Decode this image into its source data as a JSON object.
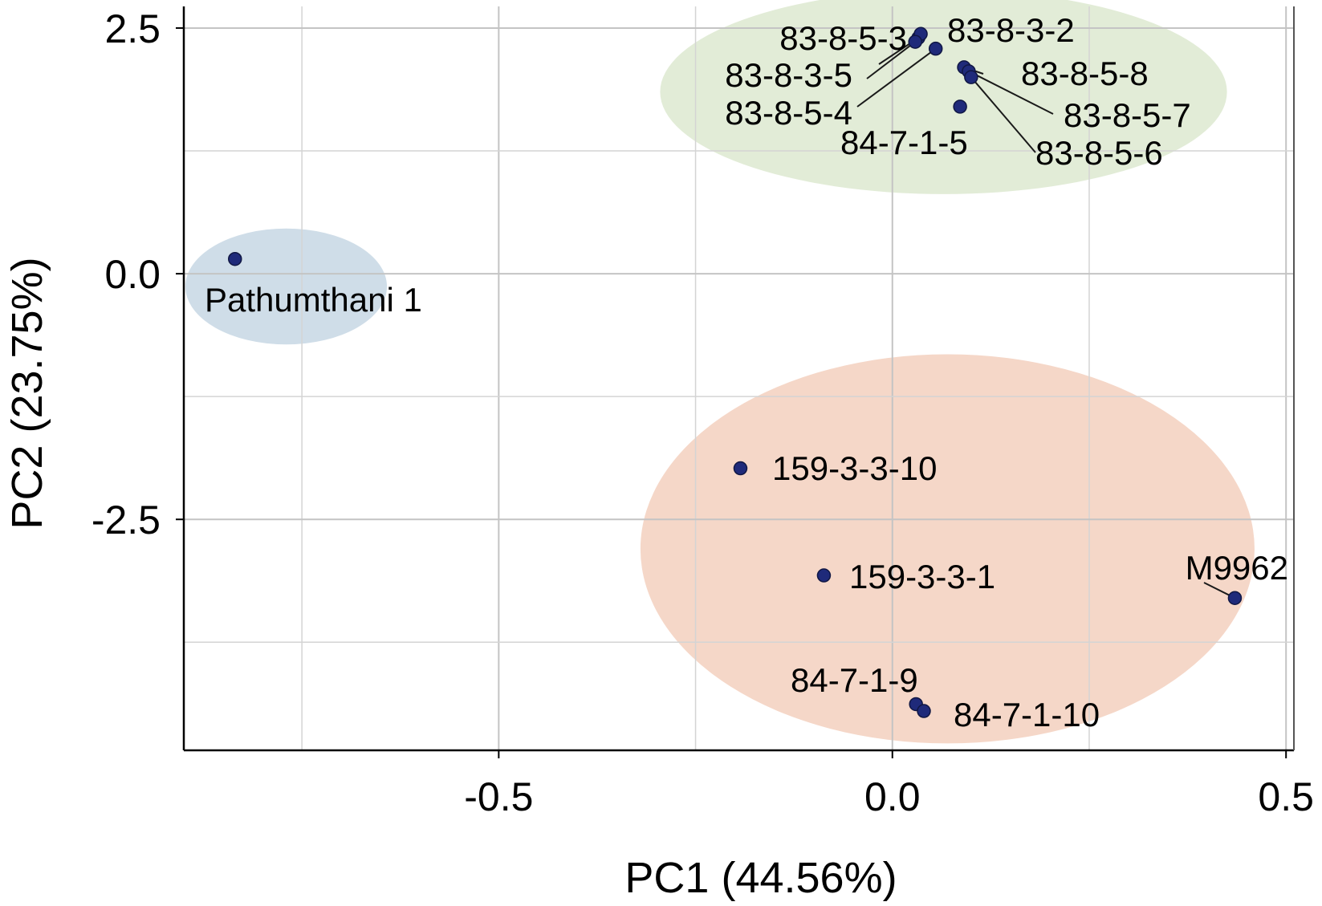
{
  "chart_data": {
    "type": "scatter",
    "title": "",
    "xlabel": "PC1 (44.56%)",
    "ylabel": "PC2 (23.75%)",
    "xlim": [
      -0.9,
      0.51
    ],
    "ylim": [
      -4.85,
      2.72
    ],
    "xticks": [
      -0.5,
      0.0,
      0.5
    ],
    "xtick_labels": [
      "-0.5",
      "0.0",
      "0.5"
    ],
    "yticks": [
      2.5,
      0.0,
      -2.5
    ],
    "ytick_labels": [
      "2.5",
      "0.0",
      "-2.5"
    ],
    "minor_x_grid": [
      -0.75,
      -0.25,
      0.25
    ],
    "minor_y_grid": [
      1.25,
      -1.25,
      -3.75
    ],
    "grid": true,
    "point_color": "#1f2a7a",
    "groups": [
      {
        "color": "#cfdde8",
        "center": [
          -0.77,
          -0.13
        ],
        "radius": [
          0.128,
          0.59
        ]
      },
      {
        "color": "#e2ecd7",
        "center": [
          0.065,
          1.85
        ],
        "radius": [
          0.36,
          1.04
        ]
      },
      {
        "color": "#f5d7c8",
        "center": [
          0.07,
          -2.8
        ],
        "radius": [
          0.39,
          1.98
        ]
      }
    ],
    "points": [
      {
        "label": "Pathumthani 1",
        "x": -0.835,
        "y": 0.15
      },
      {
        "label": "83-8-5-3",
        "x": 0.033,
        "y": 2.4
      },
      {
        "label": "83-8-3-2",
        "x": 0.036,
        "y": 2.44
      },
      {
        "label": "83-8-3-5",
        "x": 0.029,
        "y": 2.36
      },
      {
        "label": "83-8-5-4",
        "x": 0.055,
        "y": 2.29
      },
      {
        "label": "83-8-5-8",
        "x": 0.091,
        "y": 2.1
      },
      {
        "label": "83-8-5-7",
        "x": 0.097,
        "y": 2.06
      },
      {
        "label": "83-8-5-6",
        "x": 0.1,
        "y": 2.0
      },
      {
        "label": "84-7-1-5",
        "x": 0.086,
        "y": 1.7
      },
      {
        "label": "159-3-3-10",
        "x": -0.193,
        "y": -1.98
      },
      {
        "label": "159-3-3-1",
        "x": -0.087,
        "y": -3.07
      },
      {
        "label": "M9962",
        "x": 0.435,
        "y": -3.3
      },
      {
        "label": "84-7-1-9",
        "x": 0.03,
        "y": -4.38
      },
      {
        "label": "84-7-1-10",
        "x": 0.04,
        "y": -4.45
      }
    ]
  }
}
